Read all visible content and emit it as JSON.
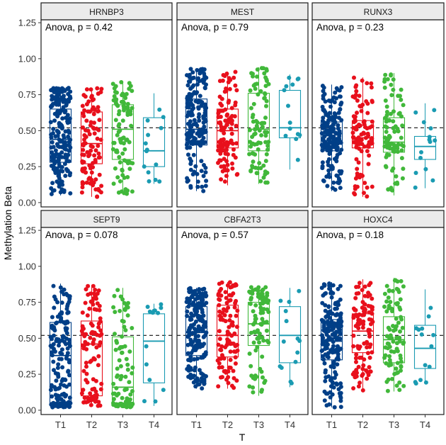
{
  "chart_data": {
    "type": "box",
    "xlabel": "T",
    "ylabel": "Methylation Beta",
    "categories": [
      "T1",
      "T2",
      "T3",
      "T4"
    ],
    "ylim": [
      -0.03,
      1.27
    ],
    "yticks": [
      "0.00",
      "0.25",
      "0.50",
      "0.75",
      "1.00",
      "1.25"
    ],
    "ytick_values": [
      0,
      0.25,
      0.5,
      0.75,
      1.0,
      1.25
    ],
    "reference_line": 0.52,
    "colors": {
      "T1": "#003f87",
      "T2": "#e8101c",
      "T3": "#41b83a",
      "T4": "#1a9bb2"
    },
    "point_counts": {
      "T1": 190,
      "T2": 105,
      "T3": 90,
      "T4": 14
    },
    "panels": [
      {
        "gene": "HRNBP3",
        "anova": "Anova, p = 0.42",
        "boxes": [
          {
            "cat": "T1",
            "min": 0.05,
            "q1": 0.28,
            "median": 0.44,
            "q3": 0.65,
            "max": 0.8
          },
          {
            "cat": "T2",
            "min": 0.04,
            "q1": 0.27,
            "median": 0.41,
            "q3": 0.63,
            "max": 0.8
          },
          {
            "cat": "T3",
            "min": 0.06,
            "q1": 0.3,
            "median": 0.51,
            "q3": 0.68,
            "max": 0.84
          },
          {
            "cat": "T4",
            "min": 0.13,
            "q1": 0.25,
            "median": 0.36,
            "q3": 0.59,
            "max": 0.76
          }
        ]
      },
      {
        "gene": "MEST",
        "anova": "Anova, p = 0.79",
        "boxes": [
          {
            "cat": "T1",
            "min": 0.08,
            "q1": 0.4,
            "median": 0.51,
            "q3": 0.72,
            "max": 0.93
          },
          {
            "cat": "T2",
            "min": 0.12,
            "q1": 0.38,
            "median": 0.5,
            "q3": 0.65,
            "max": 0.91
          },
          {
            "cat": "T3",
            "min": 0.13,
            "q1": 0.36,
            "median": 0.51,
            "q3": 0.76,
            "max": 0.94
          },
          {
            "cat": "T4",
            "min": 0.23,
            "q1": 0.45,
            "median": 0.52,
            "q3": 0.78,
            "max": 0.89
          }
        ]
      },
      {
        "gene": "RUNX3",
        "anova": "Anova, p = 0.23",
        "boxes": [
          {
            "cat": "T1",
            "min": 0.08,
            "q1": 0.36,
            "median": 0.43,
            "q3": 0.56,
            "max": 0.82
          },
          {
            "cat": "T2",
            "min": 0.04,
            "q1": 0.38,
            "median": 0.45,
            "q3": 0.57,
            "max": 0.87
          },
          {
            "cat": "T3",
            "min": 0.05,
            "q1": 0.35,
            "median": 0.42,
            "q3": 0.59,
            "max": 0.9
          },
          {
            "cat": "T4",
            "min": 0.1,
            "q1": 0.3,
            "median": 0.39,
            "q3": 0.46,
            "max": 0.69
          }
        ]
      },
      {
        "gene": "SEPT9",
        "anova": "Anova, p = 0.078",
        "boxes": [
          {
            "cat": "T1",
            "min": 0.02,
            "q1": 0.05,
            "median": 0.38,
            "q3": 0.61,
            "max": 0.88
          },
          {
            "cat": "T2",
            "min": 0.03,
            "q1": 0.1,
            "median": 0.46,
            "q3": 0.62,
            "max": 0.87
          },
          {
            "cat": "T3",
            "min": 0.02,
            "q1": 0.05,
            "median": 0.16,
            "q3": 0.51,
            "max": 0.85
          },
          {
            "cat": "T4",
            "min": 0.03,
            "q1": 0.19,
            "median": 0.48,
            "q3": 0.67,
            "max": 0.74
          }
        ]
      },
      {
        "gene": "CBFA2T3",
        "anova": "Anova, p = 0.57",
        "boxes": [
          {
            "cat": "T1",
            "min": 0.15,
            "q1": 0.38,
            "median": 0.54,
            "q3": 0.72,
            "max": 0.85
          },
          {
            "cat": "T2",
            "min": 0.15,
            "q1": 0.37,
            "median": 0.52,
            "q3": 0.73,
            "max": 0.89
          },
          {
            "cat": "T3",
            "min": 0.1,
            "q1": 0.45,
            "median": 0.6,
            "q3": 0.75,
            "max": 0.86
          },
          {
            "cat": "T4",
            "min": 0.16,
            "q1": 0.33,
            "median": 0.52,
            "q3": 0.72,
            "max": 0.85
          }
        ]
      },
      {
        "gene": "HOXC4",
        "anova": "Anova, p = 0.18",
        "boxes": [
          {
            "cat": "T1",
            "min": 0.02,
            "q1": 0.35,
            "median": 0.48,
            "q3": 0.63,
            "max": 0.89
          },
          {
            "cat": "T2",
            "min": 0.13,
            "q1": 0.4,
            "median": 0.55,
            "q3": 0.67,
            "max": 0.91
          },
          {
            "cat": "T3",
            "min": 0.13,
            "q1": 0.33,
            "median": 0.49,
            "q3": 0.65,
            "max": 0.92
          },
          {
            "cat": "T4",
            "min": 0.18,
            "q1": 0.29,
            "median": 0.43,
            "q3": 0.59,
            "max": 0.84
          }
        ]
      }
    ]
  }
}
